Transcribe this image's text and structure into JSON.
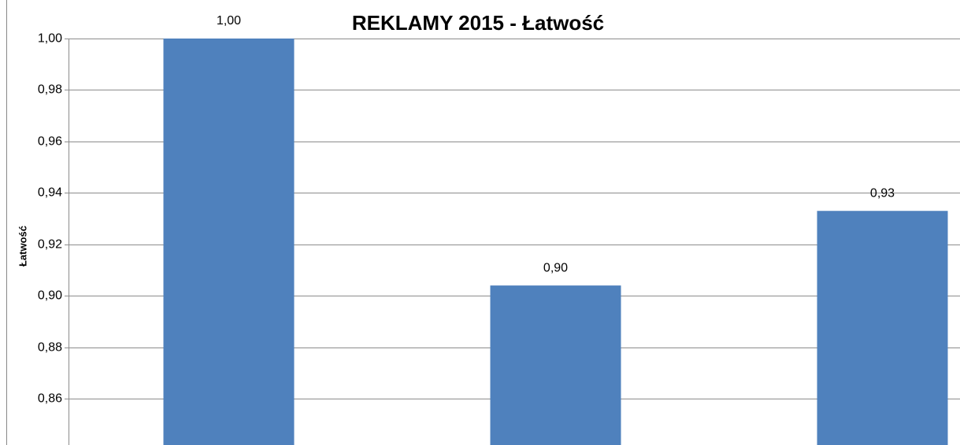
{
  "chart_data": {
    "type": "bar",
    "title": "REKLAMY 2015 - Łatwość",
    "y_label": "Łatwość",
    "categories": [
      null,
      null,
      null
    ],
    "values": [
      1.0,
      0.904,
      0.933
    ],
    "value_labels": [
      "1,00",
      "0,90",
      "0,93"
    ],
    "color": "#4f81bd",
    "ylim": [
      0.842,
      1.0
    ],
    "yticks": [
      {
        "value": 0.86,
        "label": "0,86"
      },
      {
        "value": 0.88,
        "label": "0,88"
      },
      {
        "value": 0.9,
        "label": "0,90"
      },
      {
        "value": 0.92,
        "label": "0,92"
      },
      {
        "value": 0.94,
        "label": "0,94"
      },
      {
        "value": 0.96,
        "label": "0,96"
      },
      {
        "value": 0.98,
        "label": "0,98"
      },
      {
        "value": 1.0,
        "label": "1,00"
      }
    ],
    "grid": true
  }
}
